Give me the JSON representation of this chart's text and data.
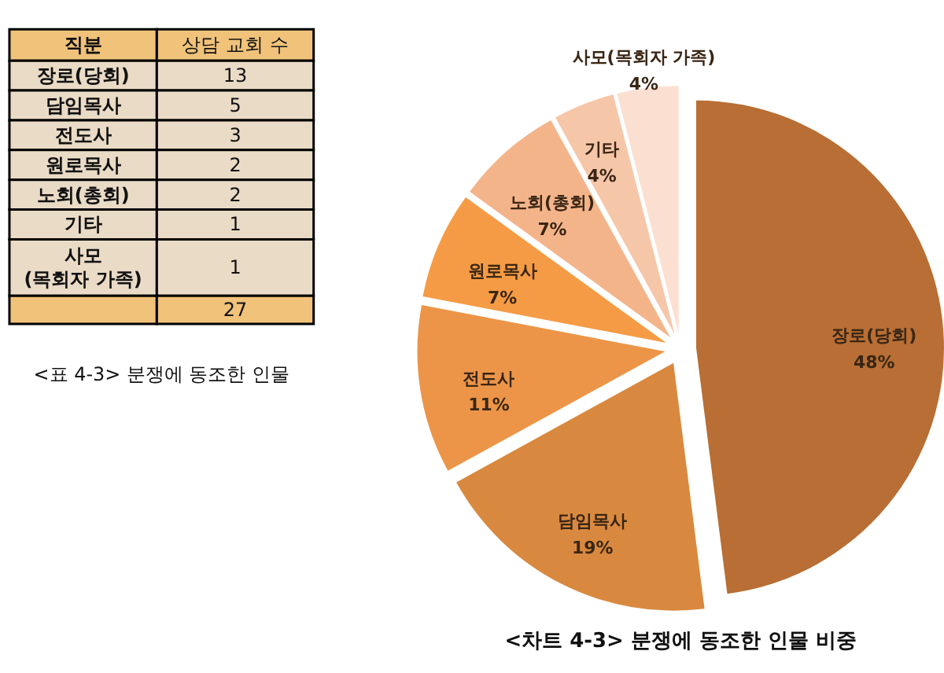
{
  "chart_data": [
    {
      "type": "other",
      "categories": [
        "장로(당회)",
        "담임목사",
        "전도사",
        "원로목사",
        "노회(총회)",
        "기타",
        "사모\n(목회자 가족)"
      ],
      "values": [
        13,
        5,
        3,
        2,
        2,
        1,
        1
      ],
      "data_labels": true,
      "annotations": [
        "직분",
        "상담 교회 수",
        "27",
        "<표 4-3> 분쟁에 동조한 인물"
      ]
    },
    {
      "type": "pie",
      "categories": [
        "장로(당회)",
        "담임목사",
        "전도사",
        "원로목사",
        "노회(총회)",
        "기타",
        "사모(목회자 가족)"
      ],
      "values": [
        48,
        19,
        11,
        7,
        7,
        4,
        4
      ],
      "colors": [
        "#b86e34",
        "#d9893f",
        "#ec9548",
        "#f59b45",
        "#f4b48a",
        "#f6c6a8",
        "#fbe0d2"
      ],
      "value_labels": [
        "48%",
        "19%",
        "11%",
        "7%",
        "7%",
        "4%",
        "4%"
      ],
      "data_labels": true,
      "annotations": [
        "<차트 4-3> 분쟁에 동조한 인물 비중"
      ]
    }
  ]
}
